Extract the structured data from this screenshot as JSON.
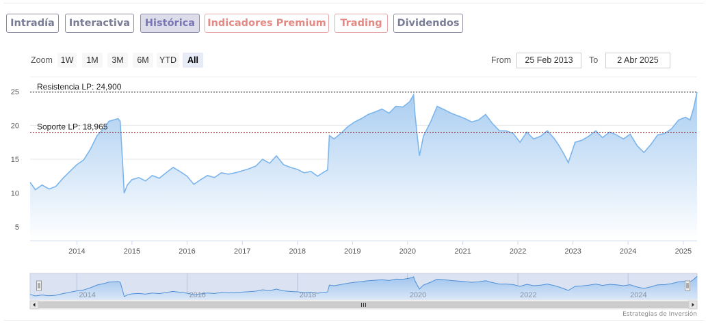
{
  "tabs": [
    {
      "label": "Intradía",
      "style": "gray"
    },
    {
      "label": "Interactiva",
      "style": "gray"
    },
    {
      "label": "Histórica",
      "style": "active"
    },
    {
      "label": "Indicadores Premium",
      "style": "red"
    },
    {
      "label": "Trading",
      "style": "red"
    },
    {
      "label": "Dividendos",
      "style": "gray"
    }
  ],
  "range_selector": {
    "zoom_label": "Zoom",
    "buttons": [
      "1W",
      "1M",
      "3M",
      "6M",
      "YTD",
      "All"
    ],
    "selected": "All",
    "from_label": "From",
    "from_value": "25 Feb 2013",
    "to_label": "To",
    "to_value": "2 Abr 2025"
  },
  "credit": "Estrategias de Inversión",
  "colors": {
    "series_line": "#7cb5ec",
    "area_top": "#a9cdf1",
    "area_bottom": "#ffffff",
    "resistance_line": "#333333",
    "support_line": "#8b1a1a",
    "navigator_mask": "#dbe3f2"
  },
  "chart_data": {
    "type": "area",
    "title": "",
    "xlabel": "",
    "ylabel": "",
    "ylim": [
      3,
      27
    ],
    "yticks": [
      5,
      10,
      15,
      20,
      25
    ],
    "xlim": [
      "2013-02-25",
      "2025-04-02"
    ],
    "xticks": [
      "2014",
      "2015",
      "2016",
      "2017",
      "2018",
      "2019",
      "2020",
      "2021",
      "2022",
      "2023",
      "2024",
      "2025"
    ],
    "legend": "none",
    "grid": true,
    "series": [
      {
        "x": [
          "2013-02-25",
          "2013-04-01",
          "2013-05-15",
          "2013-07-01",
          "2013-08-15",
          "2013-10-01",
          "2013-11-15",
          "2014-01-01",
          "2014-02-15",
          "2014-04-01",
          "2014-05-15",
          "2014-07-01",
          "2014-08-01",
          "2014-09-01",
          "2014-10-01",
          "2014-10-15",
          "2014-11-01",
          "2014-11-10",
          "2014-12-01",
          "2015-01-01",
          "2015-02-15",
          "2015-04-01",
          "2015-05-15",
          "2015-07-01",
          "2015-08-15",
          "2015-10-01",
          "2015-11-15",
          "2016-01-01",
          "2016-02-15",
          "2016-04-01",
          "2016-05-15",
          "2016-07-01",
          "2016-08-15",
          "2016-10-01",
          "2016-11-15",
          "2017-01-01",
          "2017-02-15",
          "2017-04-01",
          "2017-05-15",
          "2017-07-01",
          "2017-08-15",
          "2017-10-01",
          "2017-11-15",
          "2018-01-01",
          "2018-02-15",
          "2018-04-01",
          "2018-05-15",
          "2018-07-01",
          "2018-07-20",
          "2018-08-01",
          "2018-09-01",
          "2018-10-15",
          "2018-12-01",
          "2019-01-15",
          "2019-03-01",
          "2019-04-15",
          "2019-06-01",
          "2019-07-15",
          "2019-09-01",
          "2019-10-15",
          "2019-12-01",
          "2020-01-15",
          "2020-02-10",
          "2020-02-20",
          "2020-03-05",
          "2020-03-20",
          "2020-04-15",
          "2020-06-01",
          "2020-07-15",
          "2020-09-01",
          "2020-10-15",
          "2020-12-01",
          "2021-01-15",
          "2021-03-01",
          "2021-04-15",
          "2021-06-01",
          "2021-07-15",
          "2021-09-01",
          "2021-10-15",
          "2021-12-01",
          "2022-01-15",
          "2022-03-01",
          "2022-04-15",
          "2022-06-01",
          "2022-07-15",
          "2022-09-01",
          "2022-10-01",
          "2022-11-01",
          "2022-12-01",
          "2023-01-15",
          "2023-03-01",
          "2023-04-15",
          "2023-06-01",
          "2023-07-15",
          "2023-09-01",
          "2023-10-15",
          "2023-12-01",
          "2024-01-15",
          "2024-03-01",
          "2024-04-15",
          "2024-06-01",
          "2024-07-15",
          "2024-09-01",
          "2024-10-15",
          "2024-12-01",
          "2025-01-15",
          "2025-02-15",
          "2025-03-10",
          "2025-04-02"
        ],
        "values": [
          11.6,
          10.5,
          11.2,
          10.6,
          11.0,
          12.2,
          13.2,
          14.2,
          14.9,
          16.5,
          18.5,
          19.6,
          20.6,
          20.8,
          21.0,
          20.6,
          14.0,
          10.0,
          11.2,
          12.0,
          12.3,
          11.8,
          12.6,
          12.2,
          13.0,
          13.8,
          13.2,
          12.5,
          11.3,
          12.0,
          12.6,
          12.3,
          13.0,
          12.8,
          13.0,
          13.3,
          13.6,
          14.0,
          15.0,
          14.4,
          15.5,
          14.2,
          13.8,
          13.5,
          13.0,
          13.2,
          12.5,
          13.2,
          13.4,
          18.5,
          18.0,
          18.8,
          19.8,
          20.5,
          21.0,
          21.6,
          22.0,
          22.4,
          21.8,
          22.8,
          22.7,
          23.5,
          24.5,
          21.5,
          18.5,
          15.5,
          18.4,
          20.5,
          22.8,
          22.3,
          21.8,
          21.4,
          21.0,
          20.5,
          20.8,
          21.6,
          20.3,
          19.2,
          19.2,
          18.8,
          17.5,
          19.0,
          18.0,
          18.4,
          19.2,
          18.0,
          17.0,
          15.8,
          14.5,
          17.5,
          17.8,
          18.4,
          19.2,
          18.2,
          19.0,
          18.6,
          18.0,
          18.7,
          17.0,
          16.0,
          17.2,
          18.6,
          18.8,
          19.5,
          20.8,
          21.2,
          20.8,
          22.5,
          24.9
        ]
      }
    ],
    "annotations": [
      {
        "label": "Resistencia LP: 24,900",
        "y": 24.9,
        "style": "dashed",
        "color": "#333333"
      },
      {
        "label": "Soporte LP: 18,965",
        "y": 18.965,
        "style": "dashed",
        "color": "#8b1a1a"
      }
    ],
    "navigator": {
      "xticks": [
        "2014",
        "2016",
        "2018",
        "2020",
        "2022",
        "2024"
      ]
    }
  }
}
